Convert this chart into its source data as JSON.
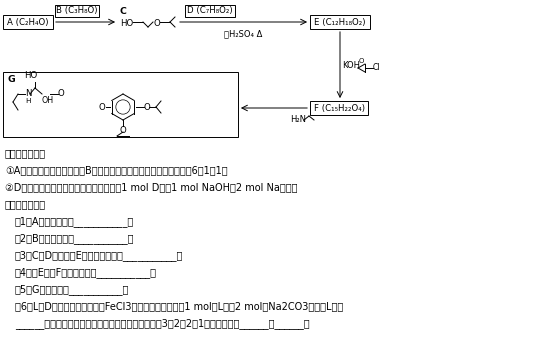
{
  "bg_color": "#ffffff",
  "text_color": "#000000",
  "diagram_lines": [
    "已知以下信息：",
    "①A的核磁共振氢谱为单峰；B的核磁共振氢谱为三组峰，峰面积比为6：1：1，",
    "②D的苯环上仅有两种不同化学环境的氢；1 mol D可与1 mol NaOH或2 mol Na反应。",
    "回答下列问题：",
    "（1）A的结构简式为___________。",
    "（2）B的化学名称为___________。",
    "（3）C与D反应生成E的化学方程式为___________。",
    "（4）由E生成F的反应类型为___________。",
    "（5）G的分子式为___________。",
    "（6）L是D的同分异构体，可与FeCl3溶液发生显色反应，1 mol的L可与2 mol的Na2CO3反应，L共有",
    "______种；其中核磁共振氢谱为四组峰，峰面积比为3：2：2：1的结构简式为______、______。"
  ]
}
